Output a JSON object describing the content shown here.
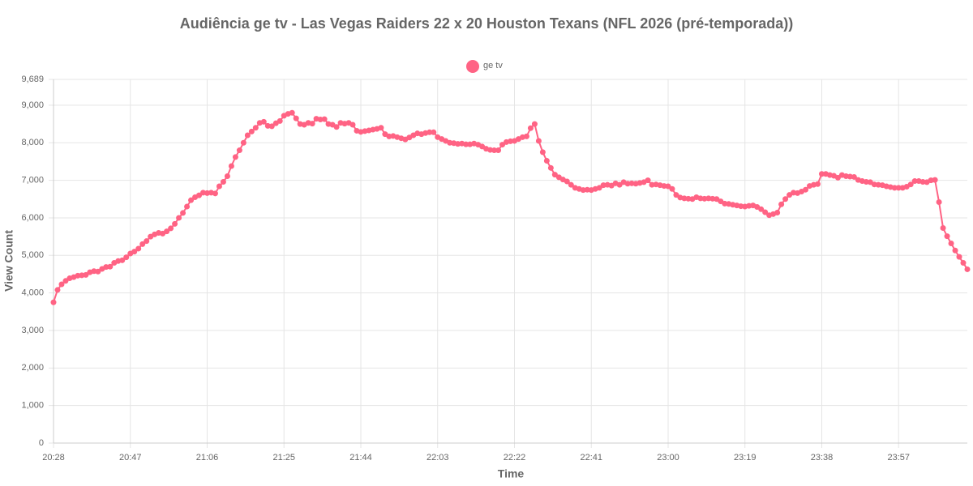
{
  "chart_data": {
    "type": "line",
    "title": "Audiência ge tv - Las Vegas Raiders 22 x 20 Houston Texans (NFL 2026 (pré-temporada))",
    "x_label": "Time",
    "y_label": "View Count",
    "grid": true,
    "legend": "top",
    "x": [
      1228,
      1229,
      1230,
      1231,
      1232,
      1233,
      1234,
      1235,
      1236,
      1237,
      1238,
      1239,
      1240,
      1241,
      1242,
      1243,
      1244,
      1245,
      1246,
      1247,
      1248,
      1249,
      1250,
      1251,
      1252,
      1253,
      1254,
      1255,
      1256,
      1257,
      1258,
      1259,
      1260,
      1261,
      1262,
      1263,
      1264,
      1265,
      1266,
      1267,
      1268,
      1269,
      1270,
      1271,
      1272,
      1273,
      1274,
      1275,
      1276,
      1277,
      1278,
      1279,
      1280,
      1281,
      1282,
      1283,
      1284,
      1285,
      1286,
      1287,
      1288,
      1289,
      1290,
      1291,
      1292,
      1293,
      1294,
      1295,
      1296,
      1297,
      1298,
      1299,
      1300,
      1301,
      1302,
      1303,
      1304,
      1305,
      1306,
      1307,
      1308,
      1309,
      1310,
      1311,
      1312,
      1313,
      1314,
      1315,
      1316,
      1317,
      1318,
      1319,
      1320,
      1321,
      1322,
      1323,
      1324,
      1325,
      1326,
      1327,
      1328,
      1329,
      1330,
      1331,
      1332,
      1333,
      1334,
      1335,
      1336,
      1337,
      1338,
      1339,
      1340,
      1341,
      1342,
      1343,
      1344,
      1345,
      1346,
      1347,
      1348,
      1349,
      1350,
      1351,
      1352,
      1353,
      1354,
      1355,
      1356,
      1357,
      1358,
      1359,
      1360,
      1361,
      1362,
      1363,
      1364,
      1365,
      1366,
      1367,
      1368,
      1369,
      1370,
      1371,
      1372,
      1373,
      1374,
      1375,
      1376,
      1377,
      1378,
      1379,
      1380,
      1381,
      1382,
      1383,
      1384,
      1385,
      1386,
      1387,
      1388,
      1389,
      1390,
      1391,
      1392,
      1393,
      1394,
      1395,
      1396,
      1397,
      1398,
      1399,
      1400,
      1401,
      1402,
      1403,
      1404,
      1405,
      1406,
      1407,
      1408,
      1409,
      1410,
      1411,
      1412,
      1413,
      1414,
      1415,
      1416,
      1417,
      1418,
      1419,
      1420,
      1421,
      1422,
      1423,
      1424,
      1425,
      1426,
      1427,
      1428,
      1429,
      1430,
      1431,
      1432,
      1433,
      1434,
      1435,
      1436,
      1437,
      1438,
      1439,
      1440,
      1441,
      1442,
      1443,
      1444,
      1445,
      1446,
      1447,
      1448,
      1449,
      1450,
      1451,
      1452,
      1453,
      1454
    ],
    "xlim": [
      1228,
      1454
    ],
    "xticks": [
      {
        "value": 1228,
        "label": "20:28"
      },
      {
        "value": 1247,
        "label": "20:47"
      },
      {
        "value": 1266,
        "label": "21:06"
      },
      {
        "value": 1285,
        "label": "21:25"
      },
      {
        "value": 1304,
        "label": "21:44"
      },
      {
        "value": 1323,
        "label": "22:03"
      },
      {
        "value": 1342,
        "label": "22:22"
      },
      {
        "value": 1361,
        "label": "22:41"
      },
      {
        "value": 1380,
        "label": "23:00"
      },
      {
        "value": 1399,
        "label": "23:19"
      },
      {
        "value": 1418,
        "label": "23:38"
      },
      {
        "value": 1437,
        "label": "23:57"
      }
    ],
    "ylim": [
      0,
      9689
    ],
    "yticks": [
      0,
      {
        "value": 1000,
        "label": "1,000"
      },
      {
        "value": 2000,
        "label": "2,000"
      },
      {
        "value": 3000,
        "label": "3,000"
      },
      {
        "value": 4000,
        "label": "4,000"
      },
      {
        "value": 5000,
        "label": "5,000"
      },
      {
        "value": 6000,
        "label": "6,000"
      },
      {
        "value": 7000,
        "label": "7,000"
      },
      {
        "value": 8000,
        "label": "8,000"
      },
      {
        "value": 9000,
        "label": "9,000"
      },
      {
        "value": 9689,
        "label": "9,689"
      }
    ],
    "series": [
      {
        "name": "ge tv",
        "color": "#ff6384",
        "values": [
          3750,
          4080,
          4230,
          4320,
          4390,
          4420,
          4460,
          4470,
          4480,
          4550,
          4580,
          4570,
          4640,
          4690,
          4700,
          4800,
          4850,
          4870,
          4950,
          5050,
          5100,
          5180,
          5300,
          5380,
          5500,
          5560,
          5600,
          5580,
          5640,
          5720,
          5840,
          6000,
          6130,
          6300,
          6470,
          6550,
          6600,
          6670,
          6660,
          6670,
          6650,
          6840,
          6960,
          7110,
          7380,
          7620,
          7800,
          8000,
          8200,
          8300,
          8400,
          8530,
          8560,
          8450,
          8440,
          8520,
          8580,
          8720,
          8770,
          8800,
          8650,
          8500,
          8480,
          8530,
          8510,
          8640,
          8620,
          8630,
          8500,
          8480,
          8420,
          8530,
          8510,
          8530,
          8480,
          8320,
          8290,
          8310,
          8330,
          8350,
          8370,
          8400,
          8230,
          8170,
          8180,
          8150,
          8120,
          8090,
          8140,
          8200,
          8250,
          8230,
          8260,
          8280,
          8280,
          8150,
          8100,
          8050,
          8000,
          7990,
          7970,
          7980,
          7960,
          7960,
          7980,
          7950,
          7900,
          7840,
          7810,
          7800,
          7800,
          7950,
          8020,
          8040,
          8050,
          8100,
          8150,
          8170,
          8390,
          8500,
          8050,
          7750,
          7520,
          7330,
          7150,
          7080,
          7020,
          6970,
          6880,
          6800,
          6770,
          6740,
          6750,
          6740,
          6770,
          6800,
          6870,
          6880,
          6860,
          6920,
          6880,
          6950,
          6910,
          6920,
          6910,
          6930,
          6950,
          7000,
          6880,
          6890,
          6870,
          6850,
          6840,
          6770,
          6610,
          6540,
          6520,
          6510,
          6500,
          6550,
          6520,
          6510,
          6520,
          6510,
          6500,
          6440,
          6380,
          6370,
          6350,
          6330,
          6310,
          6300,
          6320,
          6330,
          6290,
          6230,
          6150,
          6070,
          6100,
          6140,
          6360,
          6500,
          6610,
          6670,
          6660,
          6700,
          6750,
          6850,
          6880,
          6900,
          7170,
          7170,
          7140,
          7120,
          7070,
          7140,
          7110,
          7100,
          7090,
          7010,
          6980,
          6960,
          6950,
          6890,
          6880,
          6870,
          6840,
          6820,
          6800,
          6800,
          6800,
          6830,
          6890,
          6980,
          6980,
          6960,
          6950,
          7000,
          7010,
          6420,
          5730,
          5510,
          5320,
          5130,
          4960,
          4800,
          4630
        ]
      }
    ]
  }
}
